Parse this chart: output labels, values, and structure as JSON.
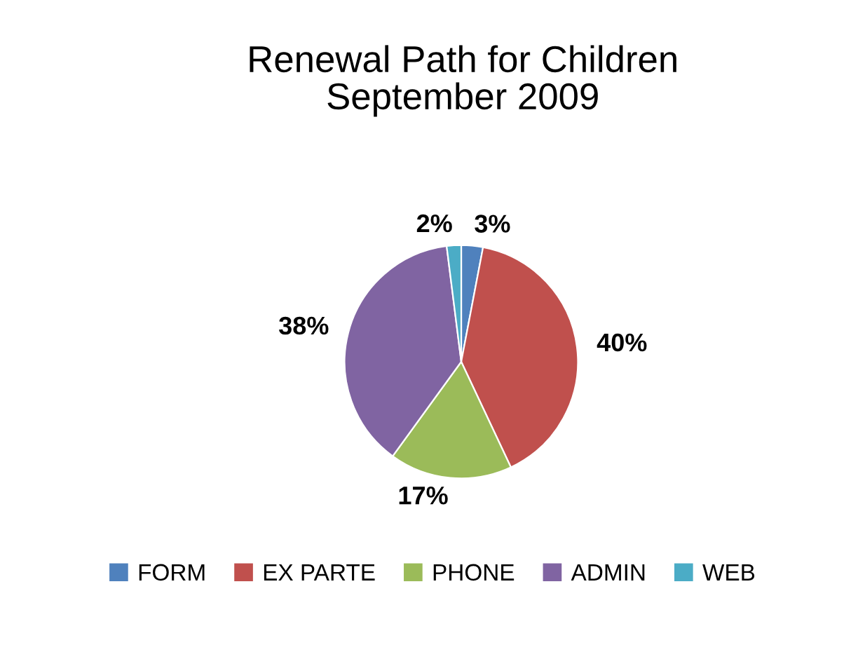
{
  "chart_data": {
    "type": "pie",
    "title": "Renewal Path for Children\nSeptember 2009",
    "categories": [
      "FORM",
      "EX PARTE",
      "PHONE",
      "ADMIN",
      "WEB"
    ],
    "values": [
      3,
      40,
      17,
      38,
      2
    ],
    "colors": [
      "#4f81bd",
      "#c0504d",
      "#9bbb59",
      "#8064a2",
      "#4bacc6"
    ],
    "value_labels": [
      "3%",
      "40%",
      "17%",
      "38%",
      "2%"
    ],
    "legend": "bottom"
  }
}
